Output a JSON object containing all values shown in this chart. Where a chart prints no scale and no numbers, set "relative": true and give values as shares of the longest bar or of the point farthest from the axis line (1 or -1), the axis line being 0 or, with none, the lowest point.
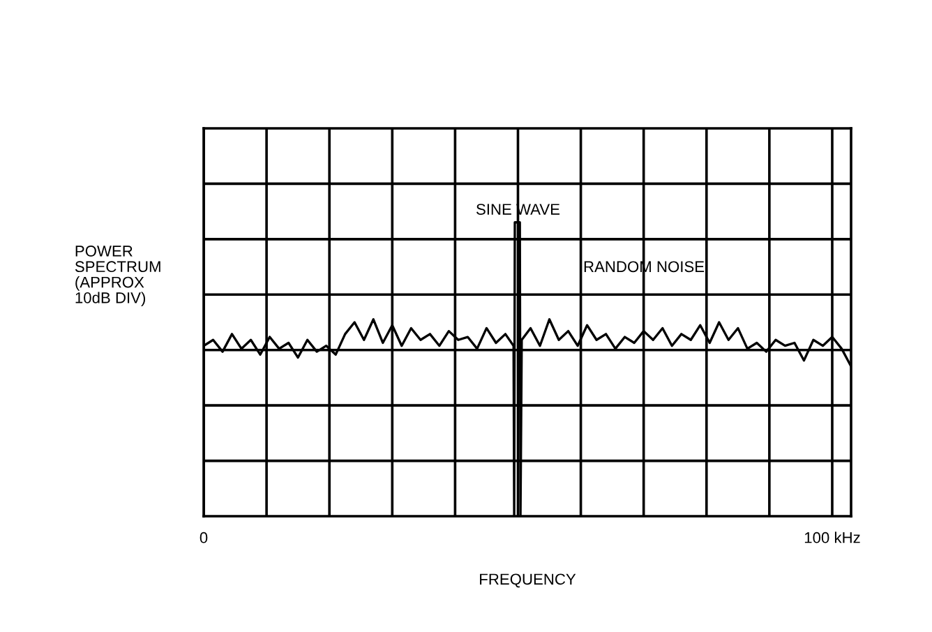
{
  "chart_data": {
    "type": "line",
    "relative": true,
    "xlabel": "FREQUENCY",
    "ylabel": "POWER\nSPECTRUM\n(APPROX\n10dB DIV)",
    "xlim": [
      0,
      103
    ],
    "xticks": [
      0,
      {
        "value": 10,
        "label": null
      },
      {
        "value": 20,
        "label": null
      },
      {
        "value": 30,
        "label": null
      },
      {
        "value": 40,
        "label": null
      },
      {
        "value": 50,
        "label": null
      },
      {
        "value": 60,
        "label": null
      },
      {
        "value": 70,
        "label": null
      },
      {
        "value": 80,
        "label": null
      },
      {
        "value": 90,
        "label": null
      },
      {
        "value": 100,
        "label": "100 kHz"
      }
    ],
    "grid": true,
    "tick_labels": "x",
    "series": [
      {
        "color": "#000000",
        "x": [
          0,
          1.5,
          3,
          4.5,
          6,
          7.5,
          9,
          10.5,
          12,
          13.5,
          15,
          16.5,
          18,
          19.5,
          21,
          22.5,
          24,
          25.5,
          27,
          28.5,
          30,
          31.5,
          33,
          34.5,
          36,
          37.5,
          39,
          40.5,
          42,
          43.5,
          45,
          46.5,
          48,
          49.3,
          49.4,
          49.5,
          50.3,
          50.4,
          50.6,
          52,
          53.5,
          55,
          56.5,
          58,
          59.5,
          61,
          62.5,
          64,
          65.5,
          67,
          68.5,
          70,
          71.5,
          73,
          74.5,
          76,
          77.5,
          79,
          80.5,
          82,
          83.5,
          85,
          86.5,
          88,
          89.5,
          91,
          92.5,
          94,
          95.5,
          97,
          98.5,
          100,
          101.5,
          103
        ],
        "values": [
          0.58,
          0.6,
          0.56,
          0.62,
          0.57,
          0.6,
          0.55,
          0.61,
          0.57,
          0.59,
          0.54,
          0.6,
          0.56,
          0.58,
          0.55,
          0.62,
          0.66,
          0.6,
          0.67,
          0.59,
          0.65,
          0.58,
          0.64,
          0.6,
          0.62,
          0.58,
          0.63,
          0.6,
          0.61,
          0.57,
          0.64,
          0.59,
          0.62,
          0.58,
          0,
          1,
          1,
          0,
          0.6,
          0.64,
          0.58,
          0.67,
          0.6,
          0.63,
          0.58,
          0.65,
          0.6,
          0.62,
          0.57,
          0.61,
          0.59,
          0.63,
          0.6,
          0.64,
          0.58,
          0.62,
          0.6,
          0.65,
          0.59,
          0.66,
          0.6,
          0.64,
          0.57,
          0.59,
          0.56,
          0.6,
          0.58,
          0.59,
          0.53,
          0.6,
          0.58,
          0.61,
          0.57,
          0.51
        ]
      }
    ],
    "annotations": [
      {
        "text": "SINE WAVE",
        "x": 50,
        "y": 1
      },
      "RANDOM NOISE"
    ]
  }
}
